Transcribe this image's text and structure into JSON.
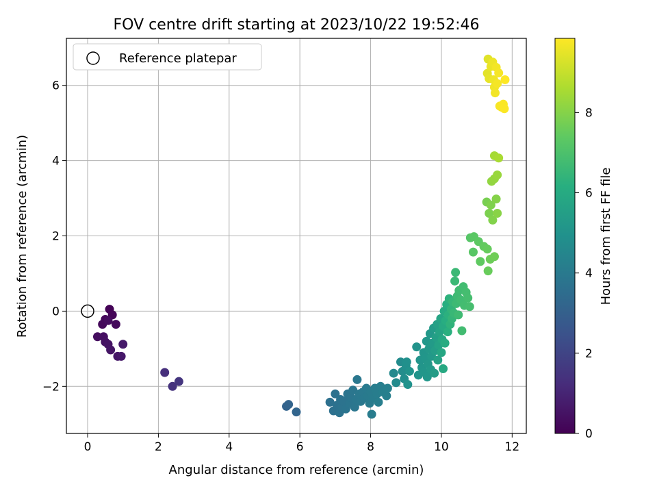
{
  "chart_data": {
    "type": "scatter",
    "title": "FOV centre drift starting at 2023/10/22 19:52:46",
    "xlabel": "Angular distance from reference (arcmin)",
    "ylabel": "Rotation from reference (arcmin)",
    "xlim": [
      -0.6,
      12.4
    ],
    "ylim": [
      -3.25,
      7.25
    ],
    "xticks": [
      "0",
      "2",
      "4",
      "6",
      "8",
      "10",
      "12"
    ],
    "yticks": [
      "−2",
      "0",
      "2",
      "4",
      "6"
    ],
    "xtick_values": [
      0,
      2,
      4,
      6,
      8,
      10,
      12
    ],
    "ytick_values": [
      -2,
      0,
      2,
      4,
      6
    ],
    "grid": true,
    "colormap": "viridis",
    "colorbar": {
      "label": "Hours from first FF file",
      "range": [
        0,
        9.85
      ],
      "ticks": [
        "0",
        "2",
        "4",
        "6",
        "8"
      ],
      "tick_values": [
        0,
        2,
        4,
        6,
        8
      ]
    },
    "legend": {
      "position": "top-left",
      "entries": [
        "Reference platepar"
      ]
    },
    "reference_point": {
      "x": 0,
      "y": 0
    },
    "points": [
      {
        "x": 0.62,
        "y": 0.05,
        "h": 0.05
      },
      {
        "x": 0.7,
        "y": -0.1,
        "h": 0.1
      },
      {
        "x": 0.5,
        "y": -0.22,
        "h": 0.15
      },
      {
        "x": 0.42,
        "y": -0.35,
        "h": 0.2
      },
      {
        "x": 0.8,
        "y": -0.35,
        "h": 0.25
      },
      {
        "x": 0.58,
        "y": -0.25,
        "h": 0.3
      },
      {
        "x": 0.28,
        "y": -0.68,
        "h": 0.35
      },
      {
        "x": 0.45,
        "y": -0.68,
        "h": 0.4
      },
      {
        "x": 0.5,
        "y": -0.82,
        "h": 0.45
      },
      {
        "x": 0.58,
        "y": -0.88,
        "h": 0.5
      },
      {
        "x": 0.65,
        "y": -1.03,
        "h": 0.55
      },
      {
        "x": 0.85,
        "y": -1.2,
        "h": 0.6
      },
      {
        "x": 0.95,
        "y": -1.2,
        "h": 0.65
      },
      {
        "x": 1.0,
        "y": -0.88,
        "h": 0.7
      },
      {
        "x": 2.18,
        "y": -1.63,
        "h": 1.3
      },
      {
        "x": 2.4,
        "y": -2.0,
        "h": 1.4
      },
      {
        "x": 2.58,
        "y": -1.87,
        "h": 1.5
      },
      {
        "x": 5.62,
        "y": -2.53,
        "h": 3.1
      },
      {
        "x": 5.68,
        "y": -2.48,
        "h": 3.15
      },
      {
        "x": 5.9,
        "y": -2.68,
        "h": 3.2
      },
      {
        "x": 6.85,
        "y": -2.42,
        "h": 3.6
      },
      {
        "x": 6.95,
        "y": -2.65,
        "h": 3.62
      },
      {
        "x": 7.0,
        "y": -2.2,
        "h": 3.64
      },
      {
        "x": 7.05,
        "y": -2.5,
        "h": 3.66
      },
      {
        "x": 7.12,
        "y": -2.7,
        "h": 3.68
      },
      {
        "x": 7.15,
        "y": -2.35,
        "h": 3.7
      },
      {
        "x": 7.2,
        "y": -2.55,
        "h": 3.72
      },
      {
        "x": 7.25,
        "y": -2.4,
        "h": 3.74
      },
      {
        "x": 7.3,
        "y": -2.6,
        "h": 3.76
      },
      {
        "x": 7.35,
        "y": -2.2,
        "h": 3.78
      },
      {
        "x": 7.4,
        "y": -2.45,
        "h": 3.8
      },
      {
        "x": 7.45,
        "y": -2.3,
        "h": 3.82
      },
      {
        "x": 7.5,
        "y": -2.1,
        "h": 3.84
      },
      {
        "x": 7.55,
        "y": -2.55,
        "h": 3.86
      },
      {
        "x": 7.6,
        "y": -2.35,
        "h": 3.88
      },
      {
        "x": 7.62,
        "y": -1.82,
        "h": 3.9
      },
      {
        "x": 7.68,
        "y": -2.2,
        "h": 3.92
      },
      {
        "x": 7.72,
        "y": -2.4,
        "h": 3.94
      },
      {
        "x": 7.78,
        "y": -2.15,
        "h": 3.96
      },
      {
        "x": 7.82,
        "y": -2.3,
        "h": 3.98
      },
      {
        "x": 7.88,
        "y": -2.05,
        "h": 4.0
      },
      {
        "x": 7.92,
        "y": -2.25,
        "h": 4.02
      },
      {
        "x": 7.97,
        "y": -2.45,
        "h": 4.04
      },
      {
        "x": 8.0,
        "y": -2.15,
        "h": 4.06
      },
      {
        "x": 8.03,
        "y": -2.74,
        "h": 4.08
      },
      {
        "x": 8.08,
        "y": -2.3,
        "h": 4.1
      },
      {
        "x": 8.12,
        "y": -2.05,
        "h": 4.12
      },
      {
        "x": 8.18,
        "y": -2.2,
        "h": 4.14
      },
      {
        "x": 8.22,
        "y": -2.42,
        "h": 4.16
      },
      {
        "x": 8.28,
        "y": -2.0,
        "h": 4.18
      },
      {
        "x": 8.35,
        "y": -2.15,
        "h": 4.2
      },
      {
        "x": 8.45,
        "y": -2.25,
        "h": 4.22
      },
      {
        "x": 8.48,
        "y": -2.05,
        "h": 4.24
      },
      {
        "x": 8.65,
        "y": -1.65,
        "h": 4.6
      },
      {
        "x": 8.72,
        "y": -1.9,
        "h": 4.65
      },
      {
        "x": 8.85,
        "y": -1.35,
        "h": 4.7
      },
      {
        "x": 8.9,
        "y": -1.6,
        "h": 4.75
      },
      {
        "x": 8.95,
        "y": -1.8,
        "h": 4.8
      },
      {
        "x": 9.0,
        "y": -1.45,
        "h": 4.85
      },
      {
        "x": 9.02,
        "y": -1.35,
        "h": 4.9
      },
      {
        "x": 9.05,
        "y": -1.95,
        "h": 4.95
      },
      {
        "x": 9.1,
        "y": -1.6,
        "h": 5.0
      },
      {
        "x": 9.3,
        "y": -0.95,
        "h": 5.02
      },
      {
        "x": 9.35,
        "y": -1.7,
        "h": 5.04
      },
      {
        "x": 9.4,
        "y": -1.3,
        "h": 5.06
      },
      {
        "x": 9.45,
        "y": -1.5,
        "h": 5.08
      },
      {
        "x": 9.5,
        "y": -1.1,
        "h": 5.1
      },
      {
        "x": 9.52,
        "y": -1.62,
        "h": 5.12
      },
      {
        "x": 9.55,
        "y": -1.25,
        "h": 5.14
      },
      {
        "x": 9.58,
        "y": -0.8,
        "h": 5.16
      },
      {
        "x": 9.6,
        "y": -1.75,
        "h": 5.18
      },
      {
        "x": 9.62,
        "y": -1.4,
        "h": 5.2
      },
      {
        "x": 9.65,
        "y": -1.0,
        "h": 5.22
      },
      {
        "x": 9.68,
        "y": -0.6,
        "h": 5.24
      },
      {
        "x": 9.7,
        "y": -1.55,
        "h": 5.26
      },
      {
        "x": 9.72,
        "y": -1.2,
        "h": 5.28
      },
      {
        "x": 9.75,
        "y": -0.85,
        "h": 5.3
      },
      {
        "x": 9.78,
        "y": -0.45,
        "h": 5.35
      },
      {
        "x": 9.8,
        "y": -1.65,
        "h": 5.4
      },
      {
        "x": 9.82,
        "y": -1.05,
        "h": 5.45
      },
      {
        "x": 9.85,
        "y": -0.7,
        "h": 5.5
      },
      {
        "x": 9.88,
        "y": -0.35,
        "h": 5.55
      },
      {
        "x": 9.9,
        "y": -1.3,
        "h": 5.6
      },
      {
        "x": 9.92,
        "y": -0.9,
        "h": 5.65
      },
      {
        "x": 9.95,
        "y": -0.55,
        "h": 5.7
      },
      {
        "x": 9.98,
        "y": -0.2,
        "h": 5.75
      },
      {
        "x": 10.0,
        "y": -1.1,
        "h": 5.8
      },
      {
        "x": 10.02,
        "y": -0.75,
        "h": 5.85
      },
      {
        "x": 10.05,
        "y": -1.53,
        "h": 5.9
      },
      {
        "x": 10.05,
        "y": -0.4,
        "h": 5.95
      },
      {
        "x": 10.08,
        "y": 0.0,
        "h": 6.0
      },
      {
        "x": 10.1,
        "y": -0.85,
        "h": 6.05
      },
      {
        "x": 10.12,
        "y": -0.25,
        "h": 6.1
      },
      {
        "x": 10.15,
        "y": 0.18,
        "h": 6.15
      },
      {
        "x": 10.18,
        "y": -0.55,
        "h": 6.2
      },
      {
        "x": 10.2,
        "y": -0.1,
        "h": 6.25
      },
      {
        "x": 10.22,
        "y": 0.33,
        "h": 6.3
      },
      {
        "x": 10.25,
        "y": -0.35,
        "h": 6.35
      },
      {
        "x": 10.28,
        "y": 0.05,
        "h": 6.4
      },
      {
        "x": 10.3,
        "y": -0.2,
        "h": 6.45
      },
      {
        "x": 10.32,
        "y": 0.25,
        "h": 6.5
      },
      {
        "x": 10.35,
        "y": -0.05,
        "h": 6.55
      },
      {
        "x": 10.38,
        "y": 0.8,
        "h": 6.6
      },
      {
        "x": 10.4,
        "y": 1.03,
        "h": 6.62
      },
      {
        "x": 10.42,
        "y": 0.2,
        "h": 6.65
      },
      {
        "x": 10.45,
        "y": 0.4,
        "h": 6.68
      },
      {
        "x": 10.48,
        "y": -0.1,
        "h": 6.7
      },
      {
        "x": 10.5,
        "y": 0.55,
        "h": 6.72
      },
      {
        "x": 10.55,
        "y": 0.3,
        "h": 6.74
      },
      {
        "x": 10.58,
        "y": -0.52,
        "h": 6.76
      },
      {
        "x": 10.62,
        "y": 0.65,
        "h": 6.78
      },
      {
        "x": 10.65,
        "y": 0.15,
        "h": 6.8
      },
      {
        "x": 10.7,
        "y": 0.5,
        "h": 6.82
      },
      {
        "x": 10.75,
        "y": 0.35,
        "h": 6.84
      },
      {
        "x": 10.8,
        "y": 0.12,
        "h": 6.86
      },
      {
        "x": 10.82,
        "y": 1.95,
        "h": 7.2
      },
      {
        "x": 10.9,
        "y": 1.57,
        "h": 7.25
      },
      {
        "x": 10.92,
        "y": 1.98,
        "h": 7.3
      },
      {
        "x": 11.05,
        "y": 1.85,
        "h": 7.35
      },
      {
        "x": 11.1,
        "y": 1.32,
        "h": 7.4
      },
      {
        "x": 11.2,
        "y": 1.72,
        "h": 7.45
      },
      {
        "x": 11.3,
        "y": 1.65,
        "h": 7.5
      },
      {
        "x": 11.32,
        "y": 1.07,
        "h": 7.55
      },
      {
        "x": 11.38,
        "y": 1.38,
        "h": 7.6
      },
      {
        "x": 11.5,
        "y": 1.45,
        "h": 7.65
      },
      {
        "x": 11.28,
        "y": 2.9,
        "h": 7.8
      },
      {
        "x": 11.35,
        "y": 2.6,
        "h": 7.85
      },
      {
        "x": 11.4,
        "y": 2.82,
        "h": 7.9
      },
      {
        "x": 11.45,
        "y": 2.42,
        "h": 7.95
      },
      {
        "x": 11.55,
        "y": 2.98,
        "h": 8.0
      },
      {
        "x": 11.58,
        "y": 2.6,
        "h": 8.05
      },
      {
        "x": 11.42,
        "y": 3.45,
        "h": 8.2
      },
      {
        "x": 11.5,
        "y": 3.52,
        "h": 8.25
      },
      {
        "x": 11.58,
        "y": 3.62,
        "h": 8.3
      },
      {
        "x": 11.5,
        "y": 4.13,
        "h": 8.5
      },
      {
        "x": 11.62,
        "y": 4.07,
        "h": 8.55
      },
      {
        "x": 11.32,
        "y": 6.7,
        "h": 9.4
      },
      {
        "x": 11.3,
        "y": 6.32,
        "h": 9.45
      },
      {
        "x": 11.35,
        "y": 6.18,
        "h": 9.5
      },
      {
        "x": 11.4,
        "y": 6.5,
        "h": 9.55
      },
      {
        "x": 11.45,
        "y": 6.62,
        "h": 9.6
      },
      {
        "x": 11.48,
        "y": 6.15,
        "h": 9.62
      },
      {
        "x": 11.5,
        "y": 5.95,
        "h": 9.65
      },
      {
        "x": 11.52,
        "y": 5.8,
        "h": 9.68
      },
      {
        "x": 11.55,
        "y": 6.48,
        "h": 9.7
      },
      {
        "x": 11.58,
        "y": 6.05,
        "h": 9.72
      },
      {
        "x": 11.62,
        "y": 6.33,
        "h": 9.74
      },
      {
        "x": 11.65,
        "y": 5.45,
        "h": 9.76
      },
      {
        "x": 11.7,
        "y": 5.42,
        "h": 9.78
      },
      {
        "x": 11.75,
        "y": 5.5,
        "h": 9.8
      },
      {
        "x": 11.78,
        "y": 5.38,
        "h": 9.82
      },
      {
        "x": 11.8,
        "y": 6.15,
        "h": 9.85
      }
    ]
  }
}
